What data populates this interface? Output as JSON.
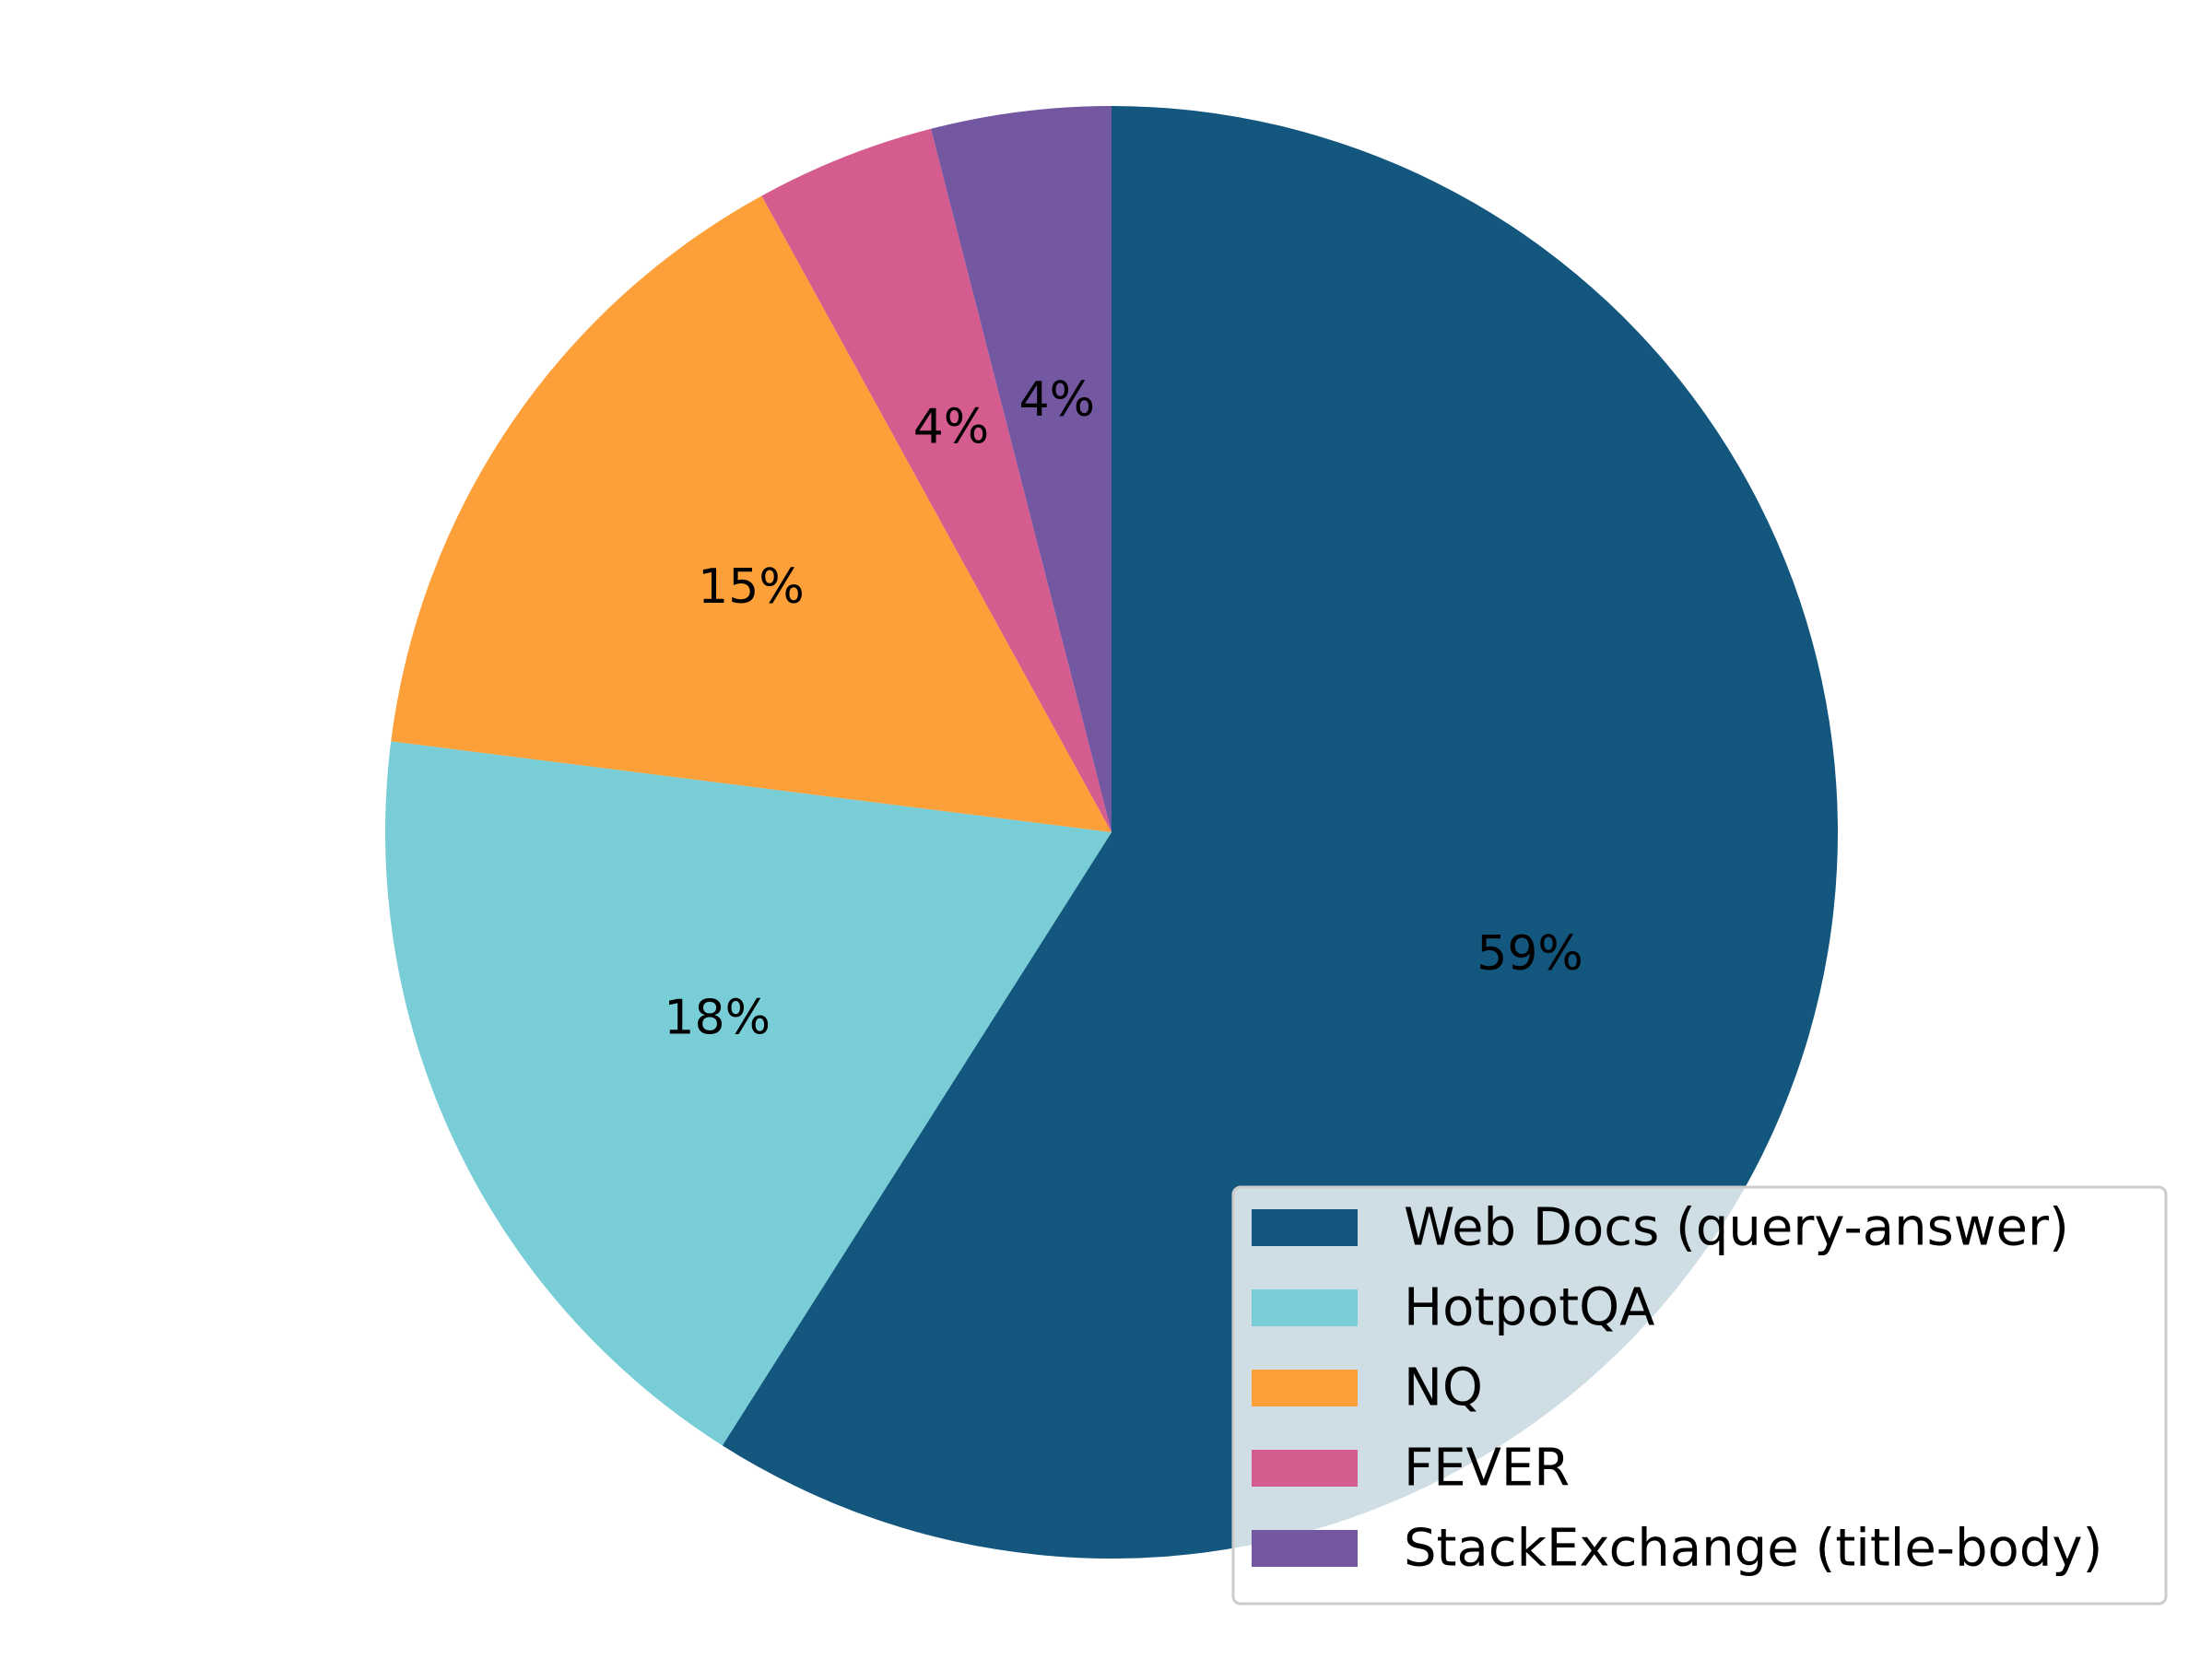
{
  "chart_data": {
    "type": "pie",
    "start_angle_deg": 90,
    "direction": "clockwise",
    "labels": [
      "Web Docs (query-answer)",
      "HotpotQA",
      "NQ",
      "FEVER",
      "StackExchange (title-body)"
    ],
    "values": [
      59,
      18,
      15,
      4,
      4
    ],
    "pct_labels": [
      "59%",
      "18%",
      "15%",
      "4%",
      "4%"
    ],
    "colors": [
      "#13577e",
      "#78cdd7",
      "#fea039",
      "#d45c8e",
      "#7457a1"
    ],
    "legend_position": "lower right"
  }
}
